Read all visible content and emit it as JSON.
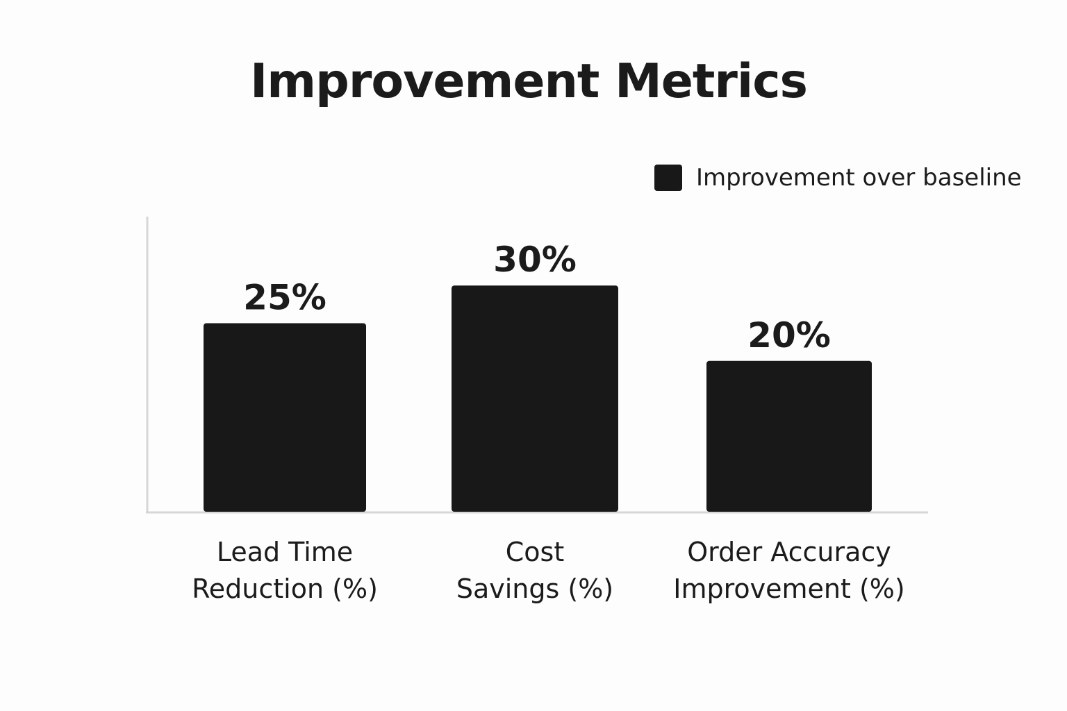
{
  "chart_data": {
    "type": "bar",
    "title": "Improvement Metrics",
    "xlabel": "",
    "ylabel": "",
    "categories": [
      [
        "Lead Time",
        "Reduction (%)"
      ],
      [
        "Cost",
        "Savings (%)"
      ],
      [
        "Order Accuracy",
        "Improvement (%)"
      ]
    ],
    "series": [
      {
        "name": "Improvement over baseline",
        "values": [
          25,
          30,
          20
        ],
        "data_labels": [
          "25%",
          "30%",
          "20%"
        ],
        "color": "#171817"
      }
    ],
    "ylim": [
      0,
      38
    ],
    "grid": false,
    "legend_position": "top-right"
  },
  "colors": {
    "bar": "#171817",
    "axis": "#d6d6d6",
    "background": "#fdfdfd"
  }
}
